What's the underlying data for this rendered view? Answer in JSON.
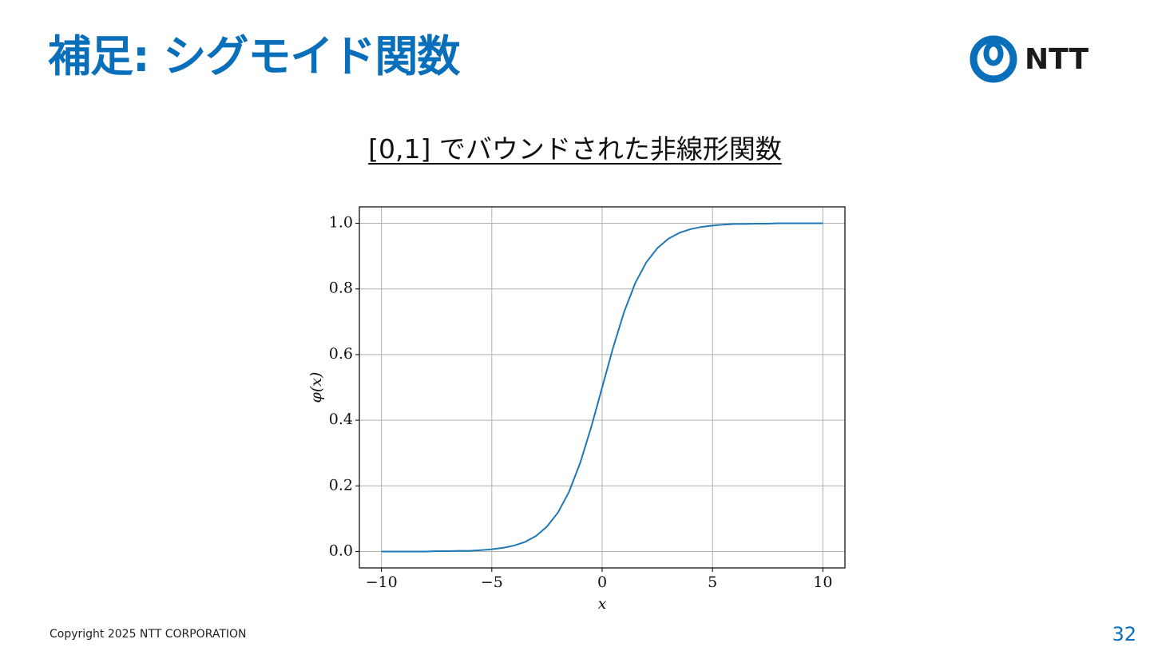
{
  "header": {
    "title": "補足: シグモイド関数",
    "logo": "NTT"
  },
  "subtitle": "[0,1] でバウンドされた非線形関数",
  "footer": {
    "copyright": "Copyright 2025 NTT CORPORATION",
    "page": "32"
  },
  "chart_data": {
    "type": "line",
    "color": "#1f77b4",
    "grid": true,
    "xlabel": "x",
    "ylabel": "φ(x)",
    "x": [
      -10,
      -9.5,
      -9,
      -8.5,
      -8,
      -7.5,
      -7,
      -6.5,
      -6,
      -5.5,
      -5,
      -4.5,
      -4,
      -3.5,
      -3,
      -2.5,
      -2,
      -1.5,
      -1,
      -0.5,
      0,
      0.5,
      1,
      1.5,
      2,
      2.5,
      3,
      3.5,
      4,
      4.5,
      5,
      5.5,
      6,
      6.5,
      7,
      7.5,
      8,
      8.5,
      9,
      9.5,
      10
    ],
    "values": [
      0,
      0,
      0,
      0,
      0,
      0.001,
      0.001,
      0.002,
      0.002,
      0.004,
      0.007,
      0.011,
      0.018,
      0.029,
      0.047,
      0.076,
      0.119,
      0.182,
      0.269,
      0.378,
      0.5,
      0.622,
      0.731,
      0.818,
      0.881,
      0.924,
      0.953,
      0.971,
      0.982,
      0.989,
      0.993,
      0.996,
      0.998,
      0.998,
      0.999,
      0.999,
      1,
      1,
      1,
      1,
      1
    ],
    "xlim": [
      -11,
      11
    ],
    "xticks": [
      {
        "value": -10,
        "label": "−10"
      },
      {
        "value": -5,
        "label": "−5"
      },
      0,
      5,
      10
    ],
    "ylim": [
      -0.05,
      1.05
    ],
    "yticks": [
      {
        "value": 0,
        "label": "0.0"
      },
      0.2,
      0.4,
      0.6,
      0.8,
      {
        "value": 1,
        "label": "1.0"
      }
    ]
  }
}
